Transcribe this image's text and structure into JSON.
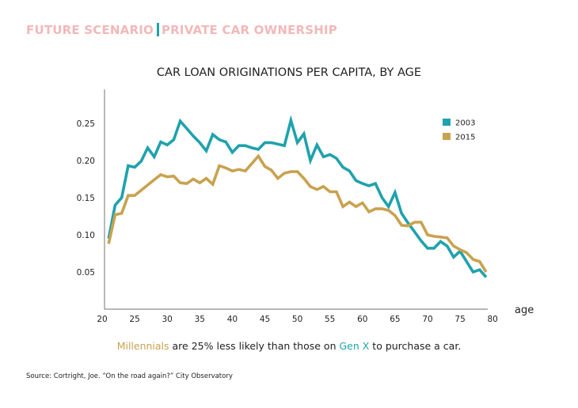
{
  "colors": {
    "header_pink": "#f2b8b8",
    "teal": "#1fa2ad",
    "gold": "#c9a24f",
    "axis": "#8a8a8a"
  },
  "header": {
    "left": "FUTURE SCENARIO",
    "right": "PRIVATE CAR OWNERSHIP"
  },
  "caption": {
    "highlight1": "Millennials",
    "middle": " are 25% less likely than those on ",
    "highlight2": "Gen X",
    "end": " to purchase a car."
  },
  "source": "Source: Cortright, Joe. “On the road again?” City Observatory",
  "chart_data": {
    "type": "line",
    "title": "CAR LOAN ORIGINATIONS PER CAPITA, BY AGE",
    "xlabel": "age",
    "ylabel": "",
    "xlim": [
      20,
      80
    ],
    "ylim": [
      0,
      0.28
    ],
    "x_ticks": [
      20,
      25,
      30,
      35,
      40,
      45,
      50,
      55,
      60,
      65,
      70,
      75,
      80
    ],
    "y_ticks": [
      0.05,
      0.1,
      0.15,
      0.2,
      0.25
    ],
    "y_tick_labels": [
      "0.05",
      "0.10",
      "0.15",
      "0.20",
      "0.25"
    ],
    "grid": false,
    "legend_position": "top-right",
    "x": [
      21,
      22,
      23,
      24,
      25,
      26,
      27,
      28,
      29,
      30,
      31,
      32,
      33,
      34,
      35,
      36,
      37,
      38,
      39,
      40,
      41,
      42,
      43,
      44,
      45,
      46,
      47,
      48,
      49,
      50,
      51,
      52,
      53,
      54,
      55,
      56,
      57,
      58,
      59,
      60,
      61,
      62,
      63,
      64,
      65,
      66,
      67,
      68,
      69,
      70,
      71,
      72,
      73,
      74,
      75,
      76,
      77,
      78,
      79
    ],
    "series": [
      {
        "name": "2003",
        "color": "#1fa2ad",
        "values": [
          0.095,
          0.14,
          0.15,
          0.193,
          0.191,
          0.199,
          0.217,
          0.205,
          0.225,
          0.221,
          0.228,
          0.253,
          0.243,
          0.233,
          0.224,
          0.213,
          0.235,
          0.228,
          0.225,
          0.211,
          0.22,
          0.22,
          0.217,
          0.215,
          0.224,
          0.224,
          0.222,
          0.22,
          0.254,
          0.224,
          0.236,
          0.2,
          0.221,
          0.205,
          0.208,
          0.203,
          0.191,
          0.186,
          0.173,
          0.169,
          0.166,
          0.169,
          0.15,
          0.138,
          0.157,
          0.129,
          0.116,
          0.104,
          0.092,
          0.082,
          0.082,
          0.091,
          0.085,
          0.07,
          0.078,
          0.064,
          0.05,
          0.053,
          0.043
        ]
      },
      {
        "name": "2015",
        "color": "#c9a24f",
        "values": [
          0.088,
          0.127,
          0.129,
          0.153,
          0.153,
          0.16,
          0.167,
          0.174,
          0.181,
          0.178,
          0.179,
          0.17,
          0.169,
          0.175,
          0.17,
          0.176,
          0.168,
          0.193,
          0.19,
          0.186,
          0.188,
          0.186,
          0.196,
          0.206,
          0.192,
          0.187,
          0.176,
          0.183,
          0.185,
          0.185,
          0.176,
          0.165,
          0.161,
          0.165,
          0.158,
          0.158,
          0.138,
          0.144,
          0.138,
          0.143,
          0.131,
          0.135,
          0.135,
          0.133,
          0.126,
          0.113,
          0.112,
          0.117,
          0.117,
          0.1,
          0.098,
          0.097,
          0.096,
          0.085,
          0.08,
          0.076,
          0.067,
          0.064,
          0.05
        ]
      }
    ]
  }
}
